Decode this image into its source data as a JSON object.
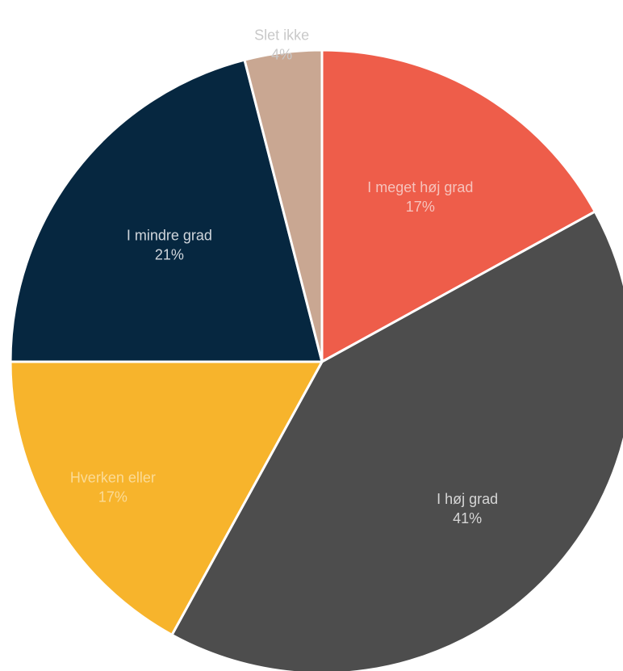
{
  "chart_data": {
    "type": "pie",
    "title": "",
    "start_angle_deg": 0,
    "direction": "clockwise",
    "slices": [
      {
        "label": "I meget høj grad",
        "pct_label": "17%",
        "value": 17,
        "color": "#EE5D4A",
        "label_color": "#F6C3BC"
      },
      {
        "label": "I høj grad",
        "pct_label": "41%",
        "value": 41,
        "color": "#4D4D4D",
        "label_color": "#D6D6D6"
      },
      {
        "label": "Hverken eller",
        "pct_label": "17%",
        "value": 17,
        "color": "#F7B42C",
        "label_color": "#FBDB96"
      },
      {
        "label": "I mindre grad",
        "pct_label": "21%",
        "value": 21,
        "color": "#062740",
        "label_color": "#D0D6DC"
      },
      {
        "label": "Slet ikke",
        "pct_label": "4%",
        "value": 4,
        "color": "#C9A792",
        "label_color": "#C9C9C9"
      }
    ]
  }
}
